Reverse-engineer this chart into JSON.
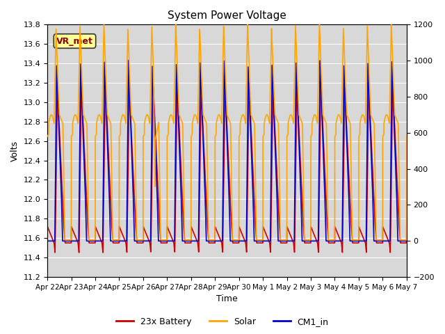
{
  "title": "System Power Voltage",
  "xlabel": "Time",
  "ylabel_left": "Volts",
  "ylim_left": [
    11.2,
    13.8
  ],
  "ylim_right": [
    -200,
    1200
  ],
  "yticks_left": [
    11.2,
    11.4,
    11.6,
    11.8,
    12.0,
    12.2,
    12.4,
    12.6,
    12.8,
    13.0,
    13.2,
    13.4,
    13.6,
    13.8
  ],
  "yticks_right": [
    -200,
    0,
    200,
    400,
    600,
    800,
    1000,
    1200
  ],
  "xtick_labels": [
    "Apr 22",
    "Apr 23",
    "Apr 24",
    "Apr 25",
    "Apr 26",
    "Apr 27",
    "Apr 28",
    "Apr 29",
    "Apr 30",
    "May 1",
    "May 2",
    "May 3",
    "May 4",
    "May 5",
    "May 6",
    "May 7"
  ],
  "legend_labels": [
    "23x Battery",
    "Solar",
    "CM1_in"
  ],
  "legend_colors": [
    "#cc0000",
    "#ffa500",
    "#0000cc"
  ],
  "annotation_text": "VR_met",
  "line_width": 1.2,
  "n_days": 15,
  "samples_per_day": 288
}
